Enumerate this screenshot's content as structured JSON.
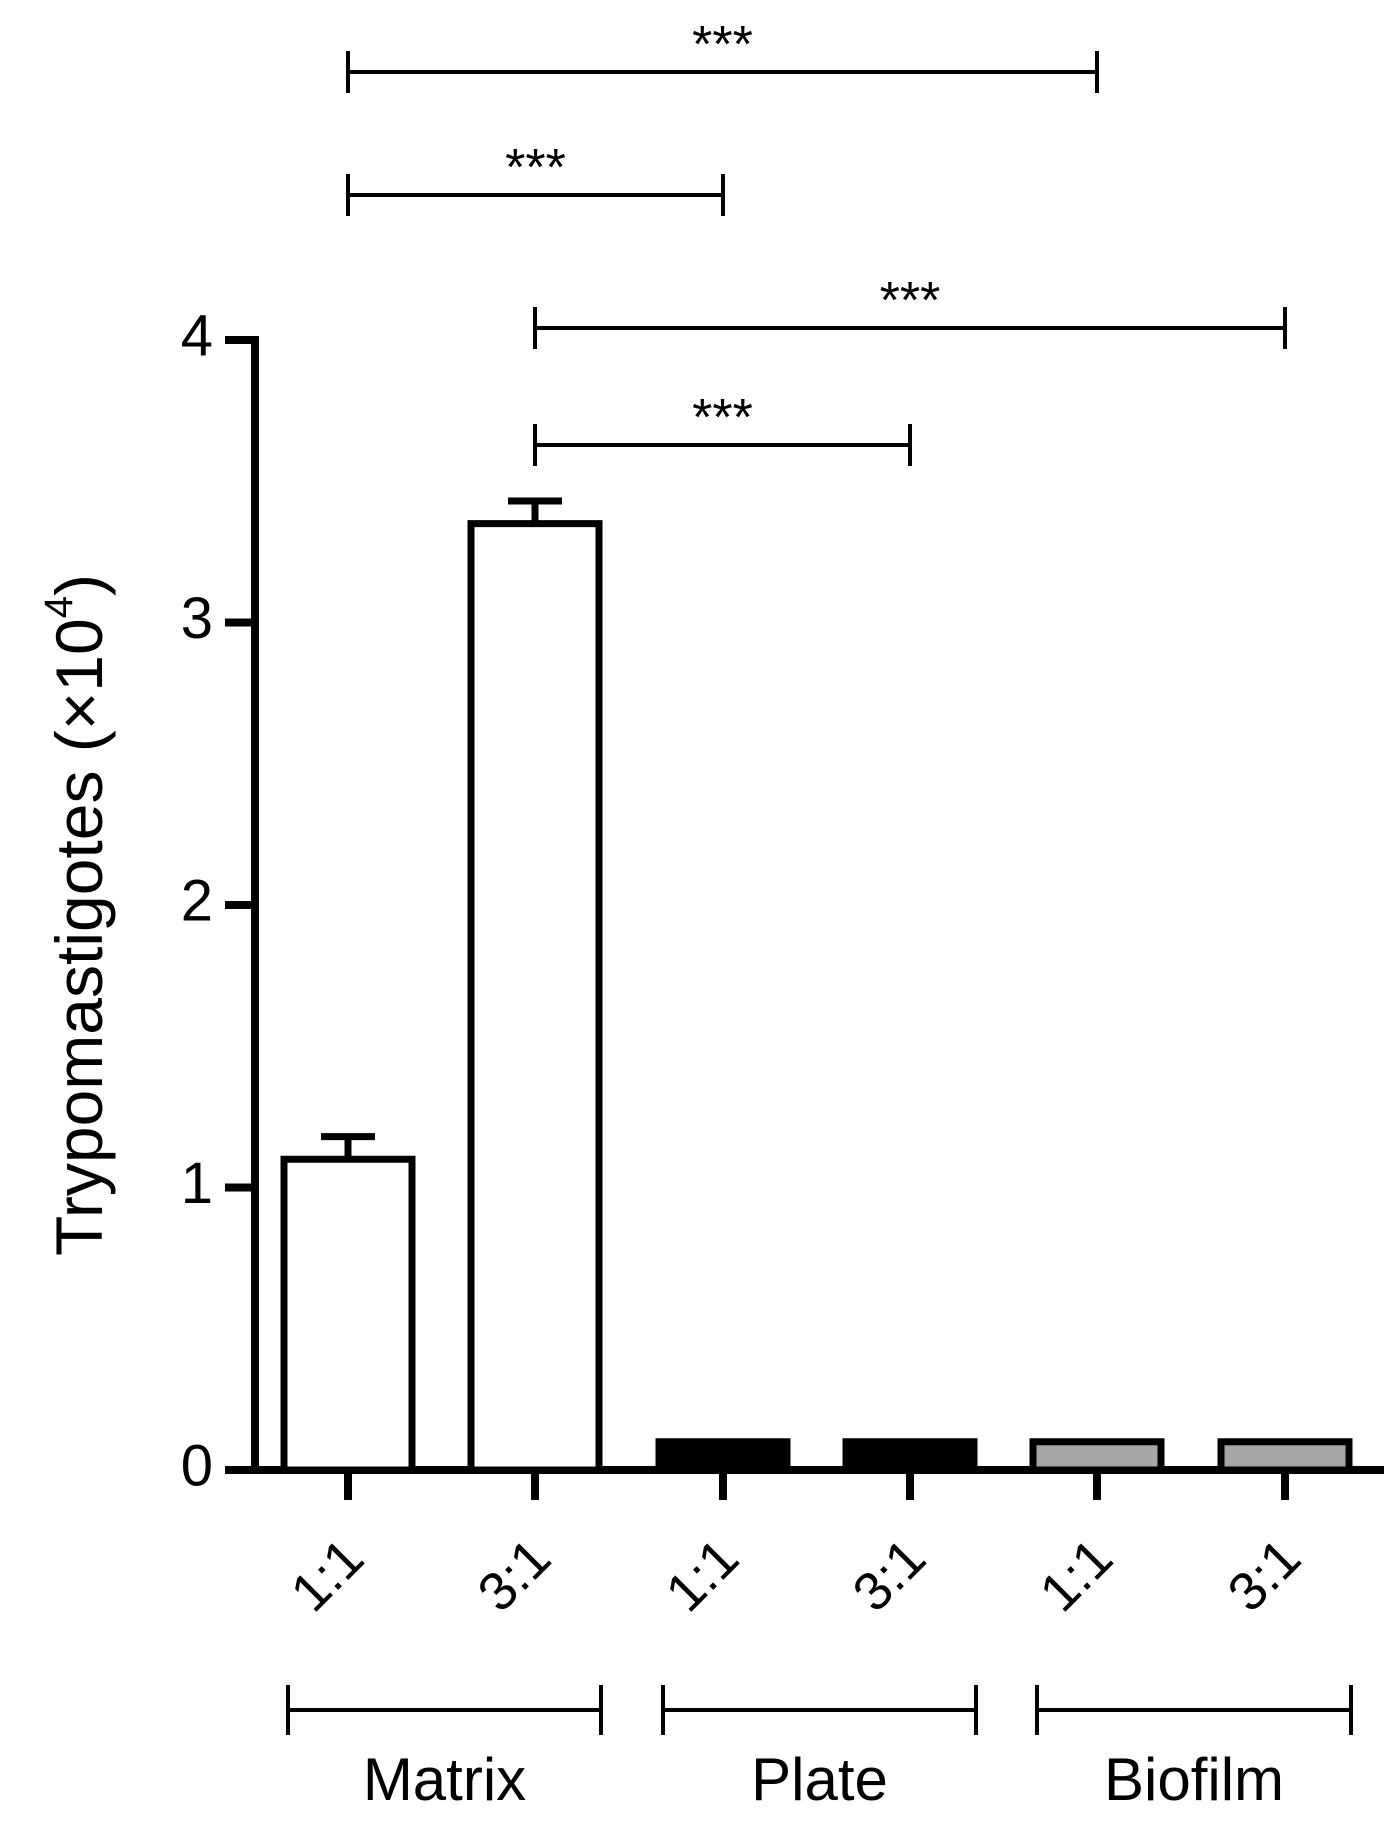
{
  "chart_data": {
    "type": "bar",
    "ylabel": "Trypomastigotes (×10",
    "ylabel_superscript": "4",
    "ylabel_close": ")",
    "ylim": [
      0,
      4
    ],
    "yticks": [
      "0",
      "1",
      "2",
      "3",
      "4"
    ],
    "categories": [
      "1:1",
      "3:1",
      "1:1",
      "3:1",
      "1:1",
      "3:1"
    ],
    "groups": [
      {
        "name": "Matrix",
        "start": 0,
        "end": 1
      },
      {
        "name": "Plate",
        "start": 2,
        "end": 3
      },
      {
        "name": "Biofilm",
        "start": 4,
        "end": 5
      }
    ],
    "values": [
      1.1,
      3.35,
      0.1,
      0.1,
      0.1,
      0.1
    ],
    "errors": [
      0.08,
      0.08,
      0,
      0,
      0,
      0
    ],
    "bar_fills": [
      "#ffffff",
      "#ffffff",
      "#000000",
      "#000000",
      "#a6a6a6",
      "#a6a6a6"
    ],
    "significance": [
      {
        "from": 0,
        "to": 4,
        "label": "***"
      },
      {
        "from": 0,
        "to": 2,
        "label": "***"
      },
      {
        "from": 1,
        "to": 5,
        "label": "***"
      },
      {
        "from": 1,
        "to": 3,
        "label": "***"
      }
    ],
    "grid": false,
    "legend": "none"
  }
}
